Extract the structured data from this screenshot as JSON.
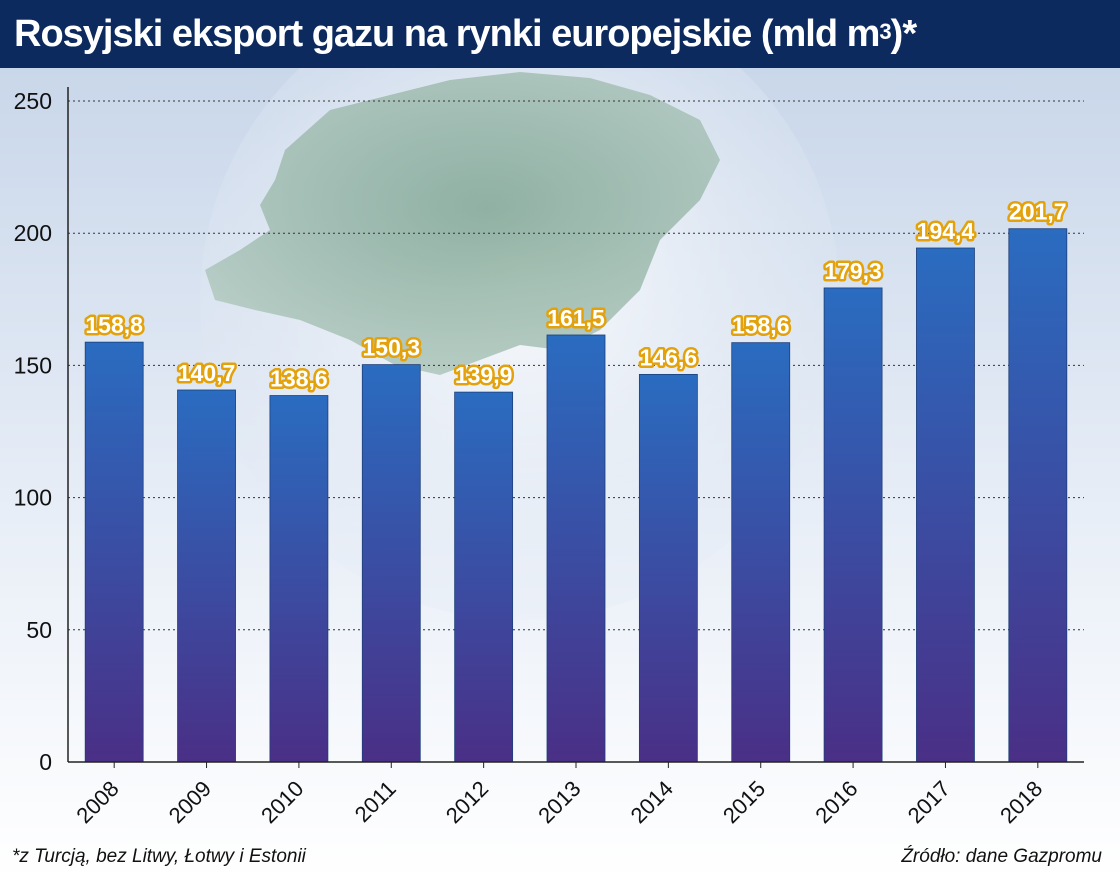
{
  "header": {
    "title_main": "Rosyjski eksport gazu na rynki europejskie  (mld m",
    "title_sup": "3",
    "title_end": ")*"
  },
  "footer": {
    "footnote": "*z Turcją, bez Litwy, Łotwy i Estonii",
    "source": "Źródło: dane Gazpromu"
  },
  "chart_data": {
    "type": "bar",
    "title": "Rosyjski eksport gazu na rynki europejskie (mld m³)*",
    "xlabel": "",
    "ylabel": "",
    "categories": [
      "2008",
      "2009",
      "2010",
      "2011",
      "2012",
      "2013",
      "2014",
      "2015",
      "2016",
      "2017",
      "2018"
    ],
    "values": [
      158.8,
      140.7,
      138.6,
      150.3,
      139.9,
      161.5,
      146.6,
      158.6,
      179.3,
      194.4,
      201.7
    ],
    "value_labels": [
      "158,8",
      "140,7",
      "138,6",
      "150,3",
      "139,9",
      "161,5",
      "146,6",
      "158,6",
      "179,3",
      "194,4",
      "201,7"
    ],
    "ylim": [
      0,
      250
    ],
    "yticks": [
      0,
      50,
      100,
      150,
      200,
      250
    ],
    "grid": true,
    "legend": "none",
    "colors": {
      "bar_top": "#2a6cc0",
      "bar_bottom": "#4a2f86",
      "label_fill": "#ffffff",
      "label_stroke": "#e3a20c",
      "title_bg": "#0c2a5e"
    }
  }
}
